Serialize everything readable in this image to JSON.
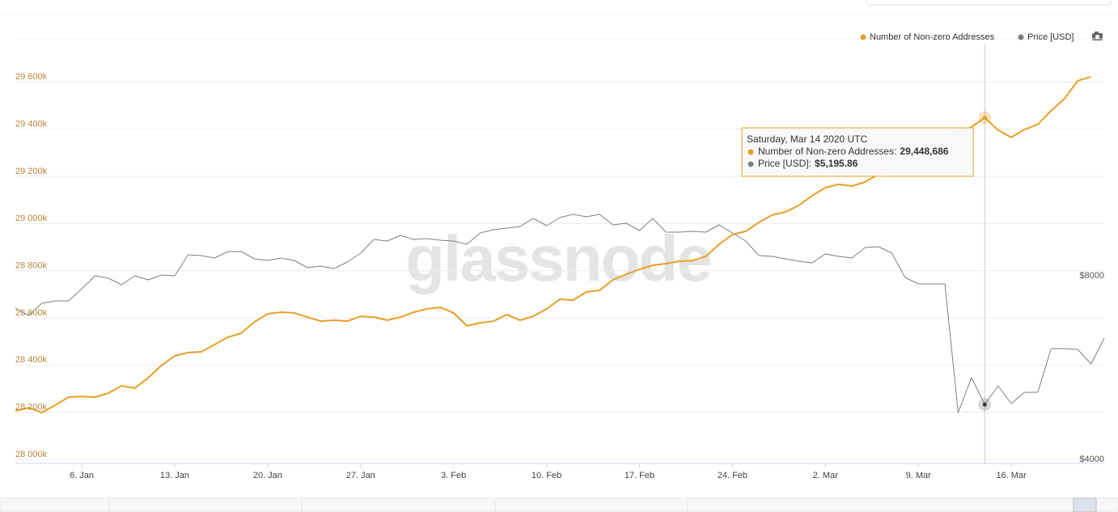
{
  "chart_data": {
    "type": "line",
    "watermark": "glassnode",
    "legend": "top-right",
    "grid": true,
    "x": [
      "2020-01-01",
      "2020-01-02",
      "2020-01-03",
      "2020-01-04",
      "2020-01-05",
      "2020-01-06",
      "2020-01-07",
      "2020-01-08",
      "2020-01-09",
      "2020-01-10",
      "2020-01-11",
      "2020-01-12",
      "2020-01-13",
      "2020-01-14",
      "2020-01-15",
      "2020-01-16",
      "2020-01-17",
      "2020-01-18",
      "2020-01-19",
      "2020-01-20",
      "2020-01-21",
      "2020-01-22",
      "2020-01-23",
      "2020-01-24",
      "2020-01-25",
      "2020-01-26",
      "2020-01-27",
      "2020-01-28",
      "2020-01-29",
      "2020-01-30",
      "2020-01-31",
      "2020-02-01",
      "2020-02-02",
      "2020-02-03",
      "2020-02-04",
      "2020-02-05",
      "2020-02-06",
      "2020-02-07",
      "2020-02-08",
      "2020-02-09",
      "2020-02-10",
      "2020-02-11",
      "2020-02-12",
      "2020-02-13",
      "2020-02-14",
      "2020-02-15",
      "2020-02-16",
      "2020-02-17",
      "2020-02-18",
      "2020-02-19",
      "2020-02-20",
      "2020-02-21",
      "2020-02-22",
      "2020-02-23",
      "2020-02-24",
      "2020-02-25",
      "2020-02-26",
      "2020-02-27",
      "2020-02-28",
      "2020-02-29",
      "2020-03-01",
      "2020-03-02",
      "2020-03-03",
      "2020-03-04",
      "2020-03-05",
      "2020-03-06",
      "2020-03-07",
      "2020-03-08",
      "2020-03-09",
      "2020-03-10",
      "2020-03-11",
      "2020-03-12",
      "2020-03-13",
      "2020-03-14",
      "2020-03-15",
      "2020-03-16",
      "2020-03-17",
      "2020-03-18",
      "2020-03-19",
      "2020-03-20",
      "2020-03-21",
      "2020-03-22",
      "2020-03-23"
    ],
    "xlim": [
      "2020-01-01",
      "2020-03-23"
    ],
    "xticks": [
      {
        "value": "2020-01-06",
        "label": "6. Jan"
      },
      {
        "value": "2020-01-13",
        "label": "13. Jan"
      },
      {
        "value": "2020-01-20",
        "label": "20. Jan"
      },
      {
        "value": "2020-01-27",
        "label": "27. Jan"
      },
      {
        "value": "2020-02-03",
        "label": "3. Feb"
      },
      {
        "value": "2020-02-10",
        "label": "10. Feb"
      },
      {
        "value": "2020-02-17",
        "label": "17. Feb"
      },
      {
        "value": "2020-02-24",
        "label": "24. Feb"
      },
      {
        "value": "2020-03-02",
        "label": "2. Mar"
      },
      {
        "value": "2020-03-09",
        "label": "9. Mar"
      },
      {
        "value": "2020-03-16",
        "label": "16. Mar"
      }
    ],
    "ylim": [
      28000000,
      29800000
    ],
    "yticks": [
      {
        "value": 28000000,
        "label": "28 000k"
      },
      {
        "value": 28200000,
        "label": "28 200k"
      },
      {
        "value": 28400000,
        "label": "28 400k"
      },
      {
        "value": 28600000,
        "label": "28 600k"
      },
      {
        "value": 28800000,
        "label": "28 800k"
      },
      {
        "value": 29000000,
        "label": "29 000k"
      },
      {
        "value": 29200000,
        "label": "29 200k"
      },
      {
        "value": 29400000,
        "label": "29 400k"
      },
      {
        "value": 29600000,
        "label": "29 600k"
      }
    ],
    "y2lim": [
      4000,
      13250
    ],
    "y2ticks": [
      {
        "value": 4000,
        "label": "$4000"
      },
      {
        "value": 8000,
        "label": "$8000"
      }
    ],
    "series": [
      {
        "name": "Number of Non-zero Addresses",
        "color": "#e5a028",
        "values": [
          28206000,
          28219000,
          28199000,
          28230000,
          28264000,
          28267000,
          28264000,
          28281000,
          28312000,
          28302000,
          28346000,
          28398000,
          28439000,
          28453000,
          28456000,
          28487000,
          28518000,
          28535000,
          28583000,
          28617000,
          28624000,
          28621000,
          28603000,
          28586000,
          28590000,
          28586000,
          28607000,
          28603000,
          28590000,
          28603000,
          28624000,
          28638000,
          28645000,
          28621000,
          28566000,
          28579000,
          28586000,
          28614000,
          28590000,
          28607000,
          28638000,
          28679000,
          28675000,
          28710000,
          28717000,
          28761000,
          28785000,
          28806000,
          28823000,
          28830000,
          28840000,
          28843000,
          28861000,
          28912000,
          28953000,
          28967000,
          29005000,
          29036000,
          29049000,
          29077000,
          29118000,
          29152000,
          29166000,
          29159000,
          29176000,
          29210000,
          29245000,
          29279000,
          29313000,
          29337000,
          29358000,
          29385000,
          29409000,
          29448686,
          29396000,
          29365000,
          29399000,
          29420000,
          29478000,
          29529000,
          29605000,
          29622000,
          null
        ]
      },
      {
        "name": "Price [USD]",
        "color": "#7f7f7f",
        "axis": "y2",
        "values": [
          7295,
          7136,
          7401,
          7454,
          7454,
          7718,
          8000,
          7947,
          7806,
          8000,
          7912,
          8017,
          8000,
          8458,
          8440,
          8387,
          8528,
          8528,
          8370,
          8335,
          8387,
          8335,
          8176,
          8211,
          8158,
          8299,
          8493,
          8793,
          8757,
          8881,
          8793,
          8810,
          8775,
          8757,
          8687,
          8934,
          9004,
          9039,
          9075,
          9251,
          9092,
          9268,
          9339,
          9286,
          9339,
          9110,
          9145,
          8986,
          9251,
          8951,
          8951,
          8969,
          8951,
          9110,
          8934,
          8757,
          8440,
          8423,
          8370,
          8317,
          8282,
          8475,
          8423,
          8387,
          8616,
          8634,
          8493,
          7965,
          7824,
          7824,
          7824,
          5022,
          5780,
          5195.86,
          5603,
          5216,
          5462,
          5462,
          6414,
          6414,
          6396,
          6079,
          6643
        ]
      }
    ],
    "tooltip": {
      "index": 73,
      "title": "Saturday, Mar 14 2020 UTC",
      "items": [
        {
          "label": "Number of Non-zero Addresses:",
          "value": "29,448,686"
        },
        {
          "label": "Price [USD]:",
          "value": "$5,195.86"
        }
      ]
    }
  }
}
